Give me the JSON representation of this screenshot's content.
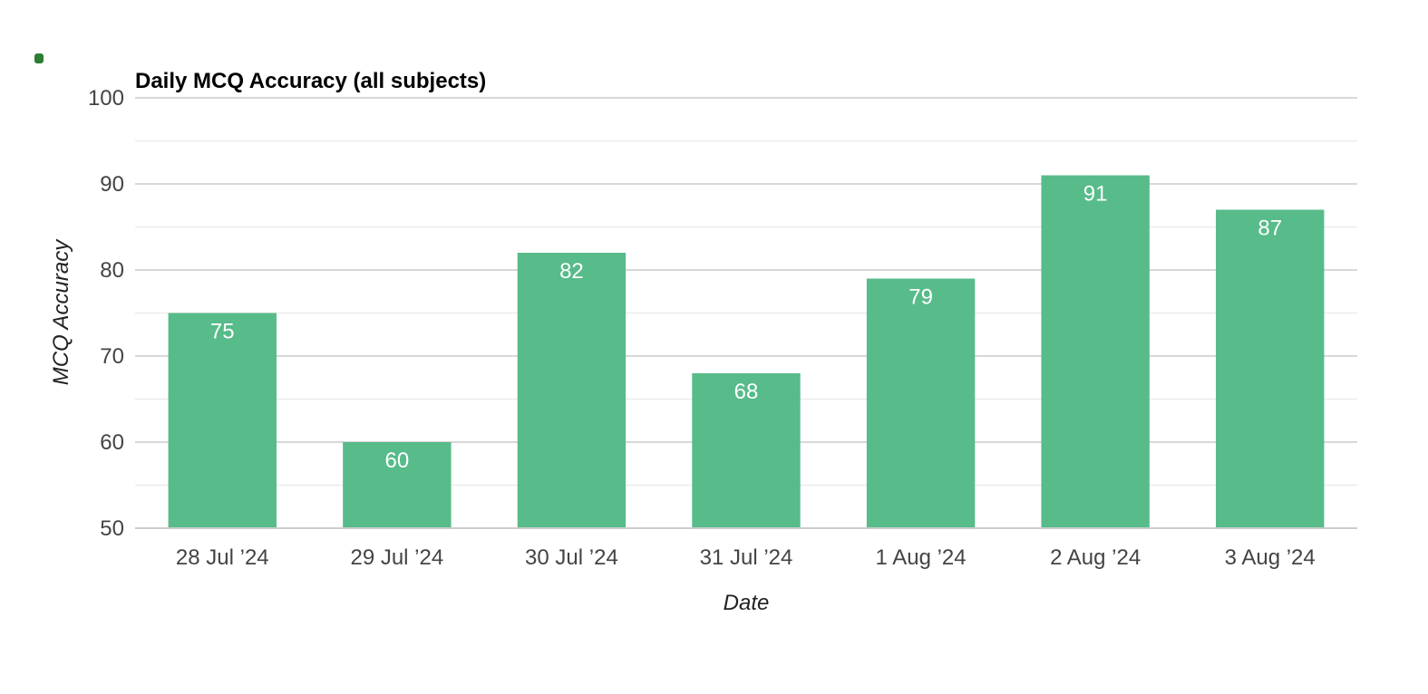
{
  "colors": {
    "bar": "#57bb8a",
    "major_grid": "#cccccc",
    "minor_grid": "#ebebeb",
    "data_label": "#ffffff",
    "corner_mark": "#2e7d32"
  },
  "chart_data": {
    "type": "bar",
    "title": "Daily MCQ Accuracy (all subjects)",
    "xlabel": "Date",
    "ylabel": "MCQ Accuracy",
    "categories": [
      "28 Jul ’24",
      "29 Jul ’24",
      "30 Jul ’24",
      "31 Jul ’24",
      "1 Aug ’24",
      "2 Aug ’24",
      "3 Aug ’24"
    ],
    "values": [
      75,
      60,
      82,
      68,
      79,
      91,
      87
    ],
    "ylim": [
      50,
      100
    ],
    "yticks": [
      50,
      60,
      70,
      80,
      90,
      100
    ],
    "minor_yticks": [
      55,
      65,
      75,
      85,
      95
    ],
    "grid": true,
    "legend": "none",
    "data_labels": true
  }
}
